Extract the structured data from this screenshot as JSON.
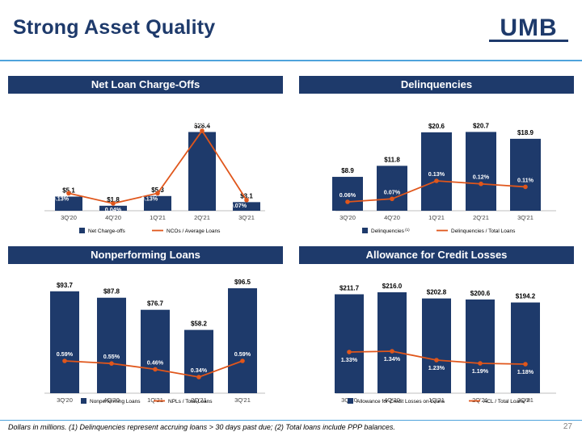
{
  "page": {
    "title": "Strong Asset Quality",
    "logo_text": "UMB",
    "footnote": "Dollars in millions. (1) Delinquencies represent accruing loans > 30 days past due; (2) Total loans include PPP balances.",
    "page_number": "27"
  },
  "colors": {
    "navy": "#1e3a6b",
    "orange": "#e0561b",
    "accent_blue": "#4fa3dc",
    "gray": "#7f7f7f"
  },
  "chart_data": [
    {
      "type": "bar",
      "title": "Net Loan Charge-Offs",
      "categories": [
        "3Q'20",
        "4Q'20",
        "1Q'21",
        "2Q'21",
        "3Q'21"
      ],
      "series": [
        {
          "name": "Net Charge-offs",
          "kind": "bar",
          "values": [
            5.1,
            1.8,
            5.3,
            28.4,
            3.1
          ],
          "labels": [
            "$5.1",
            "$1.8",
            "$5.3",
            "$28.4",
            "$3.1"
          ]
        },
        {
          "name": "NCOs / Average Loans",
          "kind": "line",
          "values": [
            0.13,
            0.04,
            0.13,
            0.68,
            0.07
          ],
          "labels": [
            "0.13%",
            "0.04%",
            "0.13%",
            "0.68%",
            "0.07%"
          ]
        }
      ],
      "legend_position": "bottom"
    },
    {
      "type": "bar",
      "title": "Delinquencies",
      "categories": [
        "3Q'20",
        "4Q'20",
        "1Q'21",
        "2Q'21",
        "3Q'21"
      ],
      "series": [
        {
          "name": "Delinquencies",
          "name_superscript": "(1)",
          "kind": "bar",
          "values": [
            8.9,
            11.8,
            20.6,
            20.7,
            18.9
          ],
          "labels": [
            "$8.9",
            "$11.8",
            "$20.6",
            "$20.7",
            "$18.9"
          ]
        },
        {
          "name": "Delinquencies / Total Loans",
          "kind": "line",
          "values": [
            0.06,
            0.07,
            0.13,
            0.12,
            0.11
          ],
          "labels": [
            "0.06%",
            "0.07%",
            "0.13%",
            "0.12%",
            "0.11%"
          ]
        }
      ],
      "legend_position": "bottom"
    },
    {
      "type": "bar",
      "title": "Nonperforming Loans",
      "categories": [
        "3Q'20",
        "4Q'20",
        "1Q'21",
        "2Q'21",
        "3Q'21"
      ],
      "series": [
        {
          "name": "Nonperforming Loans",
          "kind": "bar",
          "values": [
            93.7,
            87.8,
            76.7,
            58.2,
            96.5
          ],
          "labels": [
            "$93.7",
            "$87.8",
            "$76.7",
            "$58.2",
            "$96.5"
          ]
        },
        {
          "name": "NPLs / Total Loans",
          "kind": "line",
          "values": [
            0.59,
            0.55,
            0.46,
            0.34,
            0.59
          ],
          "labels": [
            "0.59%",
            "0.55%",
            "0.46%",
            "0.34%",
            "0.59%"
          ]
        }
      ],
      "legend_position": "bottom"
    },
    {
      "type": "bar",
      "title": "Allowance for Credit Losses",
      "categories": [
        "3Q'20",
        "4Q'20",
        "1Q'21",
        "2Q'21",
        "3Q'21"
      ],
      "series": [
        {
          "name": "Allowance for Credit Losses on Loans",
          "kind": "bar",
          "values": [
            211.7,
            216.0,
            202.8,
            200.6,
            194.2
          ],
          "labels": [
            "$211.7",
            "$216.0",
            "$202.8",
            "$200.6",
            "$194.2"
          ]
        },
        {
          "name": "ACL / Total Loans",
          "name_superscript": "(2)",
          "kind": "line",
          "values": [
            1.33,
            1.34,
            1.23,
            1.19,
            1.18
          ],
          "labels": [
            "1.33%",
            "1.34%",
            "1.23%",
            "1.19%",
            "1.18%"
          ]
        }
      ],
      "legend_position": "bottom"
    }
  ]
}
